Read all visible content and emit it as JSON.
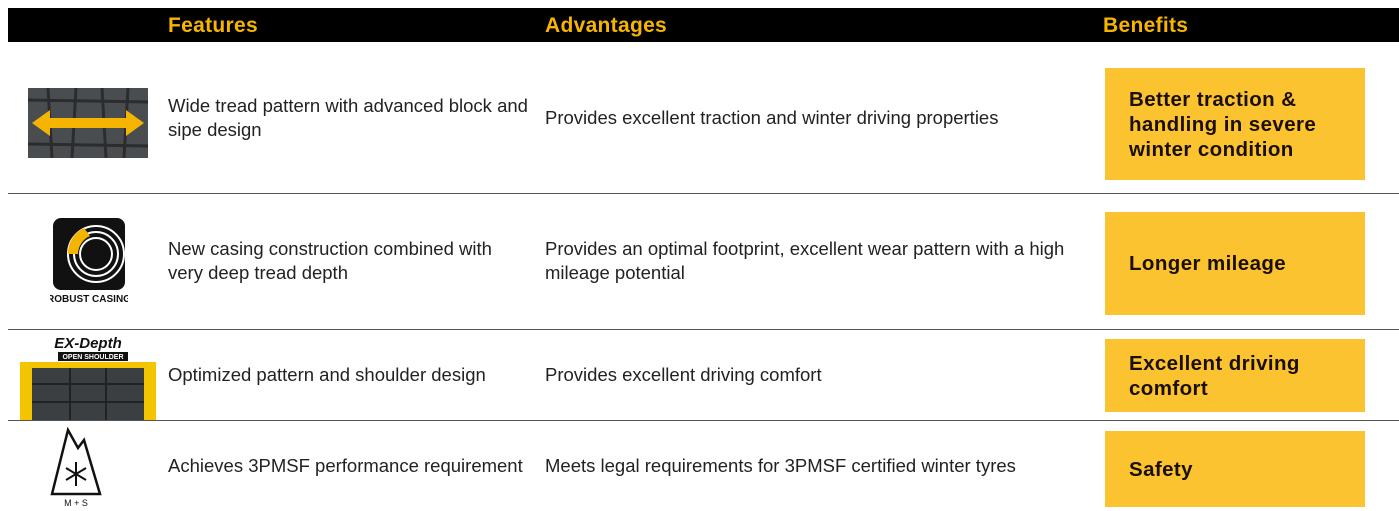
{
  "header": {
    "columns": [
      "Features",
      "Advantages",
      "Benefits"
    ]
  },
  "rows": [
    {
      "feature": "Wide tread pattern with advanced block and sipe design",
      "advantage": "Provides excellent traction and winter driving properties",
      "benefit": "Better traction & handling in severe winter condition"
    },
    {
      "icon_text": "ROBUST CASING",
      "feature": "New casing construction combined with very deep tread depth",
      "advantage": "Provides an optimal footprint, excellent wear pattern with a high mileage potential",
      "benefit": "Longer mileage"
    },
    {
      "icon_text": [
        "EX-Depth",
        "OPEN SHOULDER"
      ],
      "feature": "Optimized pattern and shoulder design",
      "advantage": "Provides excellent driving comfort",
      "benefit": "Excellent driving comfort"
    },
    {
      "icon_text": "M + S",
      "feature": "Achieves 3PMSF performance requirement",
      "advantage": "Meets legal requirements for 3PMSF certified winter tyres",
      "benefit": "Safety"
    }
  ]
}
